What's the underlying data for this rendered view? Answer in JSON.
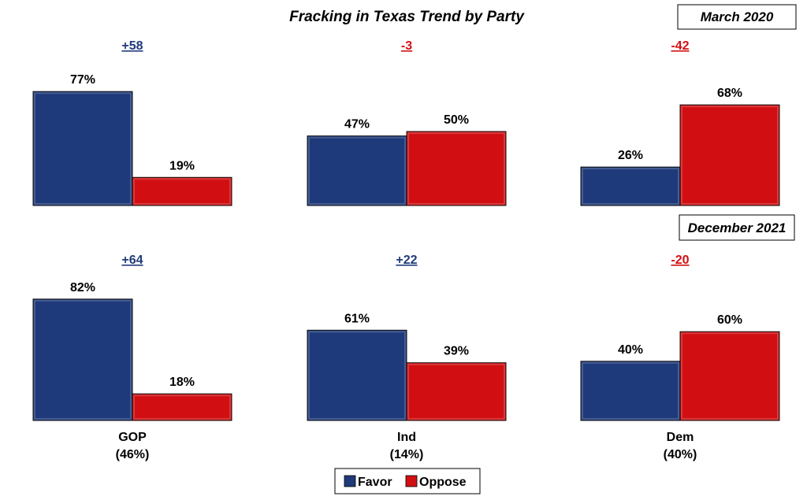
{
  "title": "Fracking in Texas Trend by Party",
  "colors": {
    "favor": "#1f3a7a",
    "oppose": "#d10f12",
    "positive_net": "#1f3a7a",
    "negative_net": "#d10f12"
  },
  "legend": [
    {
      "label": "Favor",
      "color_key": "favor"
    },
    {
      "label": "Oppose",
      "color_key": "oppose"
    }
  ],
  "category_labels": [
    {
      "name": "GOP",
      "share": "(46%)"
    },
    {
      "name": "Ind",
      "share": "(14%)"
    },
    {
      "name": "Dem",
      "share": "(40%)"
    }
  ],
  "chart_data": [
    {
      "type": "bar",
      "title": "March 2020",
      "categories": [
        "GOP",
        "Ind",
        "Dem"
      ],
      "series": [
        {
          "name": "Favor",
          "values": [
            77,
            47,
            26
          ]
        },
        {
          "name": "Oppose",
          "values": [
            19,
            50,
            68
          ]
        }
      ],
      "net_labels": [
        "+58",
        "-3",
        "-42"
      ],
      "value_format": "percent"
    },
    {
      "type": "bar",
      "title": "December 2021",
      "categories": [
        "GOP",
        "Ind",
        "Dem"
      ],
      "series": [
        {
          "name": "Favor",
          "values": [
            82,
            61,
            40
          ]
        },
        {
          "name": "Oppose",
          "values": [
            18,
            39,
            60
          ]
        }
      ],
      "net_labels": [
        "+64",
        "+22",
        "-20"
      ],
      "value_format": "percent"
    }
  ]
}
